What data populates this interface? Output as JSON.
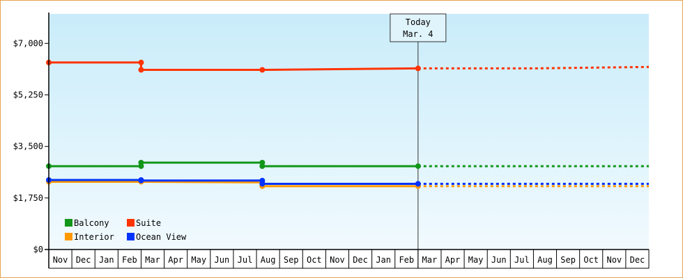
{
  "chart_data": {
    "type": "line",
    "title": "",
    "xlabel": "",
    "ylabel": "",
    "ylim": [
      0,
      8000
    ],
    "y_ticks": [
      {
        "value": 0,
        "label": "$0"
      },
      {
        "value": 1750,
        "label": "$1,750"
      },
      {
        "value": 3500,
        "label": "$3,500"
      },
      {
        "value": 5250,
        "label": "$5,250"
      },
      {
        "value": 7000,
        "label": "$7,000"
      }
    ],
    "x_months": [
      "Nov",
      "Dec",
      "Jan",
      "Feb",
      "Mar",
      "Apr",
      "May",
      "Jun",
      "Jul",
      "Aug",
      "Sep",
      "Oct",
      "Nov",
      "Dec",
      "Jan",
      "Feb",
      "Mar",
      "Apr",
      "May",
      "Jun",
      "Jul",
      "Aug",
      "Sep",
      "Oct",
      "Nov",
      "Dec"
    ],
    "today_marker": {
      "line1": "Today",
      "line2": "Mar. 4",
      "month_index": 16
    },
    "legend_position": "bottom-left",
    "series": [
      {
        "name": "Suite",
        "color": "#ff3300",
        "points": [
          {
            "month": 0,
            "value": 6350
          },
          {
            "month": 4,
            "value": 6350
          },
          {
            "month": 4,
            "value": 6100
          },
          {
            "month": 9.25,
            "value": 6100
          },
          {
            "month": 16,
            "value": 6150
          }
        ],
        "forecast": [
          {
            "month": 16,
            "value": 6150
          },
          {
            "month": 21,
            "value": 6150
          },
          {
            "month": 26,
            "value": 6200
          }
        ]
      },
      {
        "name": "Balcony",
        "color": "#109618",
        "points": [
          {
            "month": 0,
            "value": 2830
          },
          {
            "month": 4,
            "value": 2830
          },
          {
            "month": 4,
            "value": 2950
          },
          {
            "month": 9.25,
            "value": 2950
          },
          {
            "month": 9.25,
            "value": 2830
          },
          {
            "month": 16,
            "value": 2830
          }
        ],
        "forecast": [
          {
            "month": 16,
            "value": 2830
          },
          {
            "month": 26,
            "value": 2830
          }
        ]
      },
      {
        "name": "Interior",
        "color": "#ff9900",
        "points": [
          {
            "month": 0,
            "value": 2300
          },
          {
            "month": 4,
            "value": 2300
          },
          {
            "month": 9.25,
            "value": 2280
          },
          {
            "month": 9.25,
            "value": 2150
          },
          {
            "month": 16,
            "value": 2150
          }
        ],
        "forecast": [
          {
            "month": 16,
            "value": 2150
          },
          {
            "month": 26,
            "value": 2150
          }
        ]
      },
      {
        "name": "Ocean View",
        "color": "#0033ff",
        "points": [
          {
            "month": 0,
            "value": 2360
          },
          {
            "month": 4,
            "value": 2360
          },
          {
            "month": 4,
            "value": 2340
          },
          {
            "month": 9.25,
            "value": 2340
          },
          {
            "month": 9.25,
            "value": 2230
          },
          {
            "month": 16,
            "value": 2230
          }
        ],
        "forecast": [
          {
            "month": 16,
            "value": 2230
          },
          {
            "month": 26,
            "value": 2230
          }
        ]
      }
    ],
    "legend_order": [
      "Balcony",
      "Suite",
      "Interior",
      "Ocean View"
    ]
  }
}
